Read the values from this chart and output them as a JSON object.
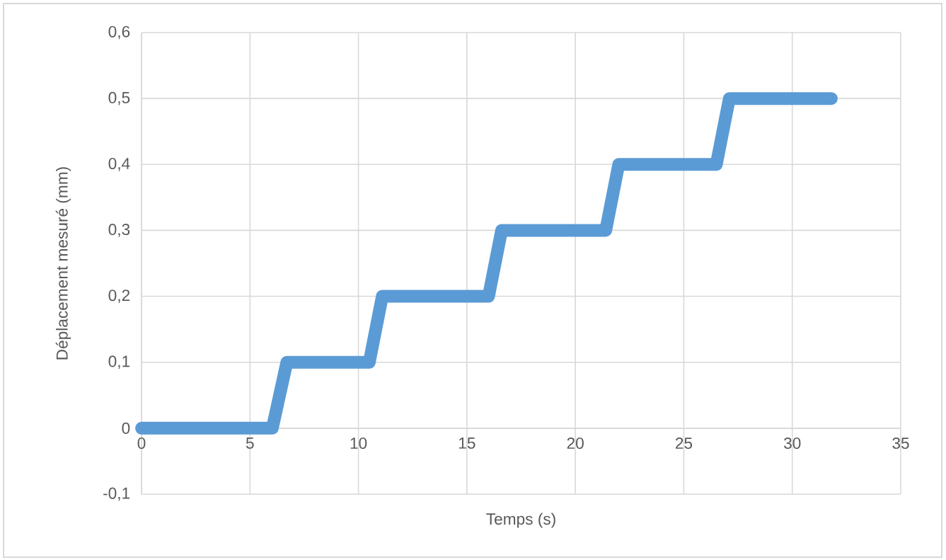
{
  "chart_data": {
    "type": "line",
    "xlabel": "Temps (s)",
    "ylabel": "Déplacement mesuré (mm)",
    "series": [
      {
        "color": "#5b9bd5",
        "x": [
          0,
          6.03,
          6.7,
          10.5,
          11.1,
          16.0,
          16.6,
          21.4,
          22.0,
          26.5,
          27.1,
          31.8
        ],
        "values": [
          0,
          0,
          0.1,
          0.1,
          0.2,
          0.2,
          0.3,
          0.3,
          0.4,
          0.4,
          0.5,
          0.5
        ]
      }
    ],
    "xlim": [
      0,
      35
    ],
    "xticks": [
      0,
      5,
      10,
      15,
      20,
      25,
      30,
      35
    ],
    "ylim": [
      -0.1,
      0.6
    ],
    "yticks": [
      {
        "value": -0.1,
        "label": "-0,1"
      },
      {
        "value": 0,
        "label": "0"
      },
      {
        "value": 0.1,
        "label": "0,1"
      },
      {
        "value": 0.2,
        "label": "0,2"
      },
      {
        "value": 0.3,
        "label": "0,3"
      },
      {
        "value": 0.4,
        "label": "0,4"
      },
      {
        "value": 0.5,
        "label": "0,5"
      },
      {
        "value": 0.6,
        "label": "0,6"
      }
    ],
    "grid": true,
    "marker": "none",
    "line_style": "solid"
  }
}
